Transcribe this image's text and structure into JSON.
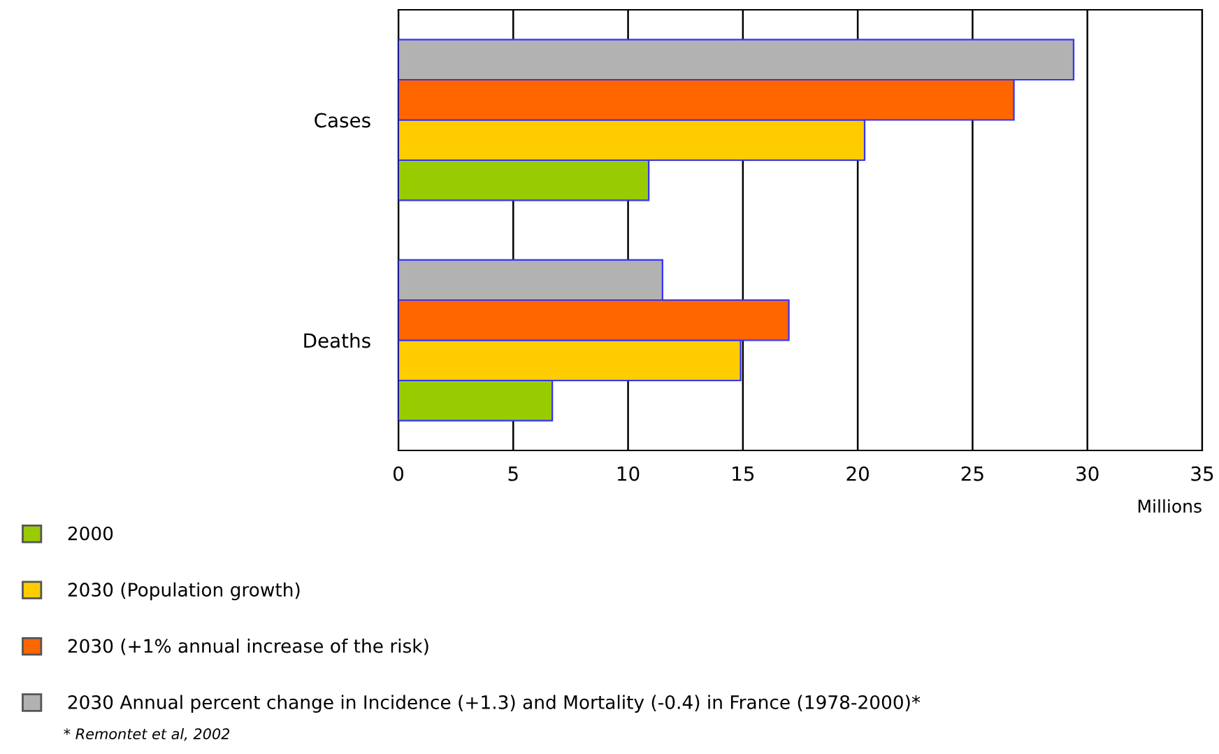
{
  "chart_data": {
    "type": "bar",
    "orientation": "horizontal",
    "categories": [
      "Cases",
      "Deaths"
    ],
    "series": [
      {
        "name": "2000",
        "color": "#99cc00",
        "values": [
          10.9,
          6.7
        ]
      },
      {
        "name": "2030 (Population growth)",
        "color": "#ffcc00",
        "values": [
          20.3,
          14.9
        ]
      },
      {
        "name": "2030 (+1% annual increase of the risk)",
        "color": "#ff6600",
        "values": [
          26.8,
          17.0
        ]
      },
      {
        "name": "2030 Annual percent change in Incidence (+1.3) and Mortality (-0.4) in France (1978-2000)*",
        "color": "#b2b2b2",
        "values": [
          29.4,
          11.5
        ]
      }
    ],
    "xlim": [
      0,
      35
    ],
    "xticks": [
      0,
      5,
      10,
      15,
      20,
      25,
      30,
      35
    ],
    "xlabel": "Millions",
    "grid": "x",
    "legend": "bottom left",
    "annotations": [
      "* Remontet et al, 2002"
    ]
  }
}
